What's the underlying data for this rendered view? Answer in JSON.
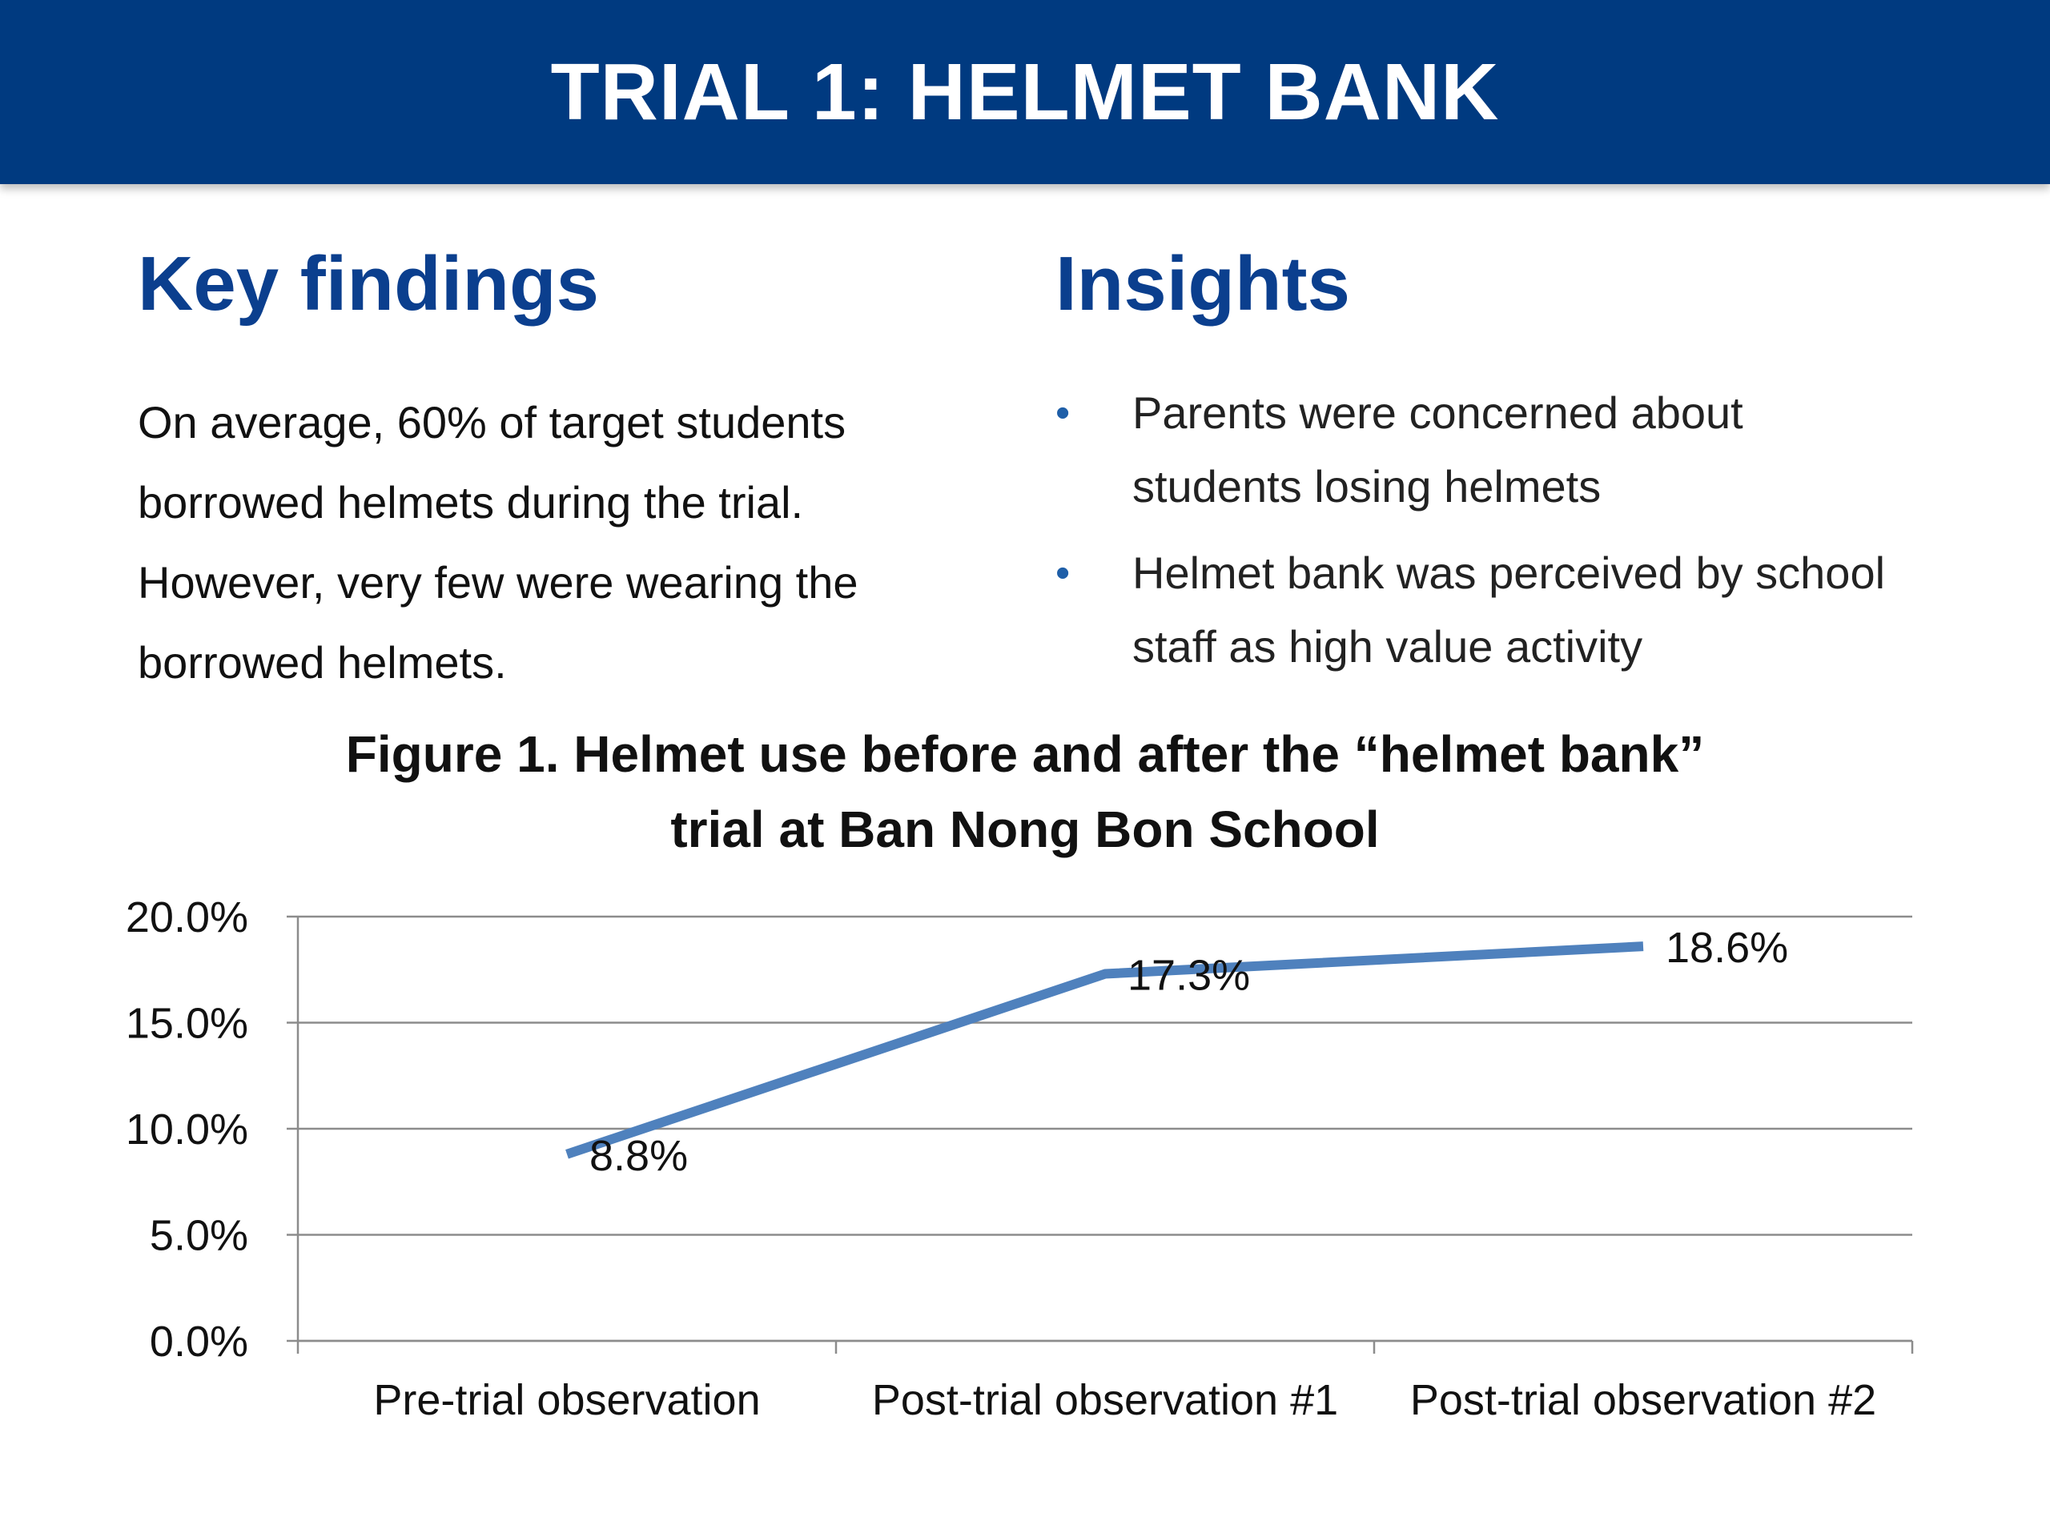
{
  "header": {
    "title": "TRIAL 1: HELMET BANK"
  },
  "key_findings": {
    "title": "Key findings",
    "lines": [
      "On average, 60% of target students",
      "borrowed helmets during the trial.",
      "However, very few were wearing the",
      "borrowed helmets."
    ]
  },
  "insights": {
    "title": "Insights",
    "bullet_glyph": "•",
    "items": [
      {
        "lines": [
          "Parents were concerned about",
          "students losing helmets"
        ]
      },
      {
        "lines": [
          "Helmet bank was perceived by school",
          "staff as high value activity"
        ]
      }
    ]
  },
  "chart_title_lines": [
    "Figure 1. Helmet use before and after the “helmet bank”",
    "trial at Ban Nong Bon School"
  ],
  "chart_data": {
    "type": "line",
    "title": "Figure 1. Helmet use before and after the “helmet bank” trial at Ban Nong Bon School",
    "xlabel": "",
    "ylabel": "",
    "categories": [
      "Pre-trial observation",
      "Post-trial observation #1",
      "Post-trial observation #2"
    ],
    "series": [
      {
        "values": [
          8.8,
          17.3,
          18.6
        ],
        "data_labels": [
          "8.8%",
          "17.3%",
          "18.6%"
        ],
        "color": "#4f81bd"
      }
    ],
    "ylim": [
      0,
      20
    ],
    "yticks": [
      0,
      5,
      10,
      15,
      20
    ],
    "ytick_labels": [
      "0.0%",
      "5.0%",
      "10.0%",
      "15.0%",
      "20.0%"
    ],
    "grid": true,
    "legend": "none"
  },
  "colors": {
    "header_bg": "#003a80",
    "heading": "#0b3f8e",
    "bullet": "#1f5fa8",
    "line": "#4f81bd",
    "gridline": "#8c8c8c"
  }
}
